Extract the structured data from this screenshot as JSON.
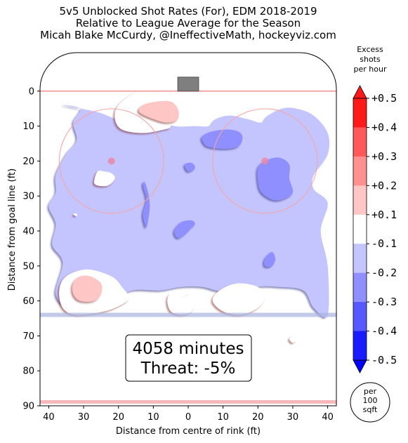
{
  "chart_data": {
    "type": "heatmap",
    "title": [
      "5v5 Unblocked Shot Rates (For), EDM 2018-2019",
      "Relative to League Average for the Season",
      "Micah Blake McCurdy, @IneffectiveMath, hockeyviz.com"
    ],
    "xlabel": "Distance from centre of rink (ft)",
    "ylabel": "Distance from goal line (ft)",
    "xlim": [
      42.5,
      -42.5
    ],
    "ylim": [
      90,
      -11
    ],
    "x_ticks": [
      40,
      30,
      20,
      10,
      0,
      10,
      20,
      30,
      40
    ],
    "x_tick_values": [
      40,
      30,
      20,
      10,
      0,
      -10,
      -20,
      -30,
      -40
    ],
    "y_ticks": [
      0,
      10,
      20,
      30,
      40,
      50,
      60,
      70,
      80,
      90
    ],
    "colorbar": {
      "title": [
        "Excess",
        "shots",
        "per hour"
      ],
      "tick_labels": [
        "+0.5",
        "+0.4",
        "+0.3",
        "+0.2",
        "+0.1",
        "-0.1",
        "-0.2",
        "-0.3",
        "-0.4",
        "-0.5"
      ],
      "levels": [
        0.5,
        0.4,
        0.3,
        0.2,
        0.1,
        -0.1,
        -0.2,
        -0.3,
        -0.4,
        -0.5
      ],
      "colors": [
        "#ff1a1a",
        "#ff5959",
        "#ff9090",
        "#ffc6c6",
        "#ffffff",
        "#c4c4ff",
        "#8f8fff",
        "#5858ff",
        "#1a1aff"
      ],
      "unit_badge": [
        "per",
        "100",
        "sqft"
      ]
    },
    "annotations": {
      "minutes": "4058 minutes",
      "threat": "Threat: -5%"
    },
    "regions": [
      {
        "level": -0.1,
        "points": [
          [
            36,
            4
          ],
          [
            31,
            5
          ],
          [
            33,
            9
          ],
          [
            32,
            14
          ],
          [
            35,
            18
          ],
          [
            38,
            24
          ],
          [
            38,
            29
          ],
          [
            40,
            33
          ],
          [
            38,
            38
          ],
          [
            39,
            44
          ],
          [
            36,
            49
          ],
          [
            38,
            58
          ],
          [
            34,
            62
          ],
          [
            28,
            60
          ],
          [
            22,
            60
          ],
          [
            16,
            57
          ],
          [
            8,
            57
          ],
          [
            2,
            56
          ],
          [
            -4,
            56
          ],
          [
            -8,
            57
          ],
          [
            -14,
            58
          ],
          [
            -20,
            56
          ],
          [
            -26,
            56
          ],
          [
            -33,
            57
          ],
          [
            -36,
            62
          ],
          [
            -40,
            64
          ],
          [
            -40,
            50
          ],
          [
            -38,
            40
          ],
          [
            -40,
            32
          ],
          [
            -36,
            28
          ],
          [
            -36,
            24
          ],
          [
            -40,
            18
          ],
          [
            -40,
            12
          ],
          [
            -36,
            7
          ],
          [
            -31,
            5
          ],
          [
            -27,
            5
          ],
          [
            -23,
            7
          ],
          [
            -21,
            9
          ],
          [
            -17,
            8
          ],
          [
            -12,
            7
          ],
          [
            -8,
            8
          ],
          [
            -6,
            10
          ],
          [
            -2,
            10
          ],
          [
            4,
            10
          ],
          [
            10,
            8
          ],
          [
            14,
            7
          ],
          [
            20,
            8
          ],
          [
            26,
            6
          ]
        ]
      },
      {
        "level": -0.2,
        "points": [
          [
            13,
            27
          ],
          [
            12,
            31
          ],
          [
            13,
            35
          ],
          [
            12.5,
            38
          ],
          [
            12,
            39
          ],
          [
            11.5,
            37
          ],
          [
            11,
            33
          ],
          [
            11.5,
            29
          ],
          [
            12.5,
            26
          ]
        ]
      },
      {
        "level": -0.2,
        "points": [
          [
            4,
            40
          ],
          [
            2,
            37.5
          ],
          [
            -1,
            37
          ],
          [
            -2,
            38
          ],
          [
            -1,
            39
          ],
          [
            1,
            41
          ],
          [
            3,
            42
          ]
        ]
      },
      {
        "level": -0.2,
        "points": [
          [
            -4,
            13
          ],
          [
            -7,
            11.5
          ],
          [
            -12,
            11
          ],
          [
            -15,
            12
          ],
          [
            -15.5,
            14
          ],
          [
            -14,
            16
          ],
          [
            -10,
            16.5
          ],
          [
            -6,
            16
          ],
          [
            -4.5,
            15
          ]
        ]
      },
      {
        "level": -0.2,
        "points": [
          [
            -20,
            22
          ],
          [
            -22,
            20
          ],
          [
            -26,
            19
          ],
          [
            -29,
            21
          ],
          [
            -29,
            25
          ],
          [
            -30,
            29
          ],
          [
            -27,
            31
          ],
          [
            -24,
            31
          ],
          [
            -21,
            29
          ],
          [
            -20,
            26
          ]
        ]
      },
      {
        "level": -0.2,
        "points": [
          [
            -22,
            50
          ],
          [
            -22,
            48
          ],
          [
            -24,
            46
          ],
          [
            -25,
            48
          ],
          [
            -24,
            50
          ]
        ]
      },
      {
        "level": -0.2,
        "points": [
          [
            1,
            21
          ],
          [
            -1,
            20.5
          ],
          [
            -2,
            22
          ],
          [
            0,
            23
          ]
        ]
      },
      {
        "level": 0.1,
        "points": [
          [
            6,
            3
          ],
          [
            5,
            6
          ],
          [
            5,
            10
          ],
          [
            7,
            11
          ],
          [
            13,
            12
          ],
          [
            19,
            11
          ],
          [
            21,
            8
          ],
          [
            20,
            4
          ],
          [
            14,
            0
          ],
          [
            8,
            1
          ]
        ]
      },
      {
        "level": 0.1,
        "points": [
          [
            37,
            57
          ],
          [
            35,
            53
          ],
          [
            29,
            51
          ],
          [
            22,
            53
          ],
          [
            19,
            56
          ],
          [
            17,
            59
          ],
          [
            19,
            61
          ],
          [
            24,
            63
          ],
          [
            32,
            64
          ],
          [
            36,
            62
          ]
        ]
      },
      {
        "level": 0.1,
        "points": [
          [
            2,
            59
          ],
          [
            -1,
            58
          ],
          [
            -2,
            60
          ],
          [
            -1,
            63
          ],
          [
            2,
            64
          ],
          [
            5,
            63
          ],
          [
            6,
            60
          ],
          [
            5,
            58
          ]
        ]
      },
      {
        "level": 0.1,
        "points": [
          [
            -7,
            60
          ],
          [
            -9,
            57
          ],
          [
            -14,
            55
          ],
          [
            -20,
            56
          ],
          [
            -22,
            59
          ],
          [
            -20,
            62
          ],
          [
            -15,
            64
          ],
          [
            -10,
            63
          ]
        ]
      },
      {
        "level": 0.1,
        "points": [
          [
            26,
            23
          ],
          [
            24,
            23
          ],
          [
            22,
            23.5
          ],
          [
            21,
            25
          ],
          [
            23,
            27
          ],
          [
            26,
            27
          ],
          [
            27,
            26
          ]
        ]
      },
      {
        "level": 0.1,
        "points": [
          [
            33,
            35.2
          ],
          [
            32,
            35
          ],
          [
            32,
            35.8
          ]
        ]
      },
      {
        "level": 0.1,
        "points": [
          [
            -29,
            71
          ],
          [
            -30,
            70
          ],
          [
            -31,
            71
          ],
          [
            -30,
            72
          ]
        ]
      },
      {
        "level": 0.2,
        "points": [
          [
            5,
            3
          ],
          [
            3,
            5
          ],
          [
            3,
            8
          ],
          [
            6,
            9
          ],
          [
            10,
            8
          ],
          [
            14,
            6
          ],
          [
            13,
            4
          ],
          [
            9,
            3
          ]
        ]
      },
      {
        "level": 0.2,
        "points": [
          [
            33,
            55
          ],
          [
            31,
            53
          ],
          [
            28,
            53
          ],
          [
            25,
            55
          ],
          [
            25,
            58
          ],
          [
            27,
            60
          ],
          [
            31,
            60
          ],
          [
            33,
            58
          ]
        ]
      }
    ],
    "rink": {
      "goal_line_ft": 0,
      "blue_line_ft": 64,
      "centre_line_ft": 89,
      "faceoff_dots": [
        [
          22,
          20
        ],
        [
          -22,
          20
        ]
      ],
      "faceoff_circle_radius_ft": 15
    }
  }
}
